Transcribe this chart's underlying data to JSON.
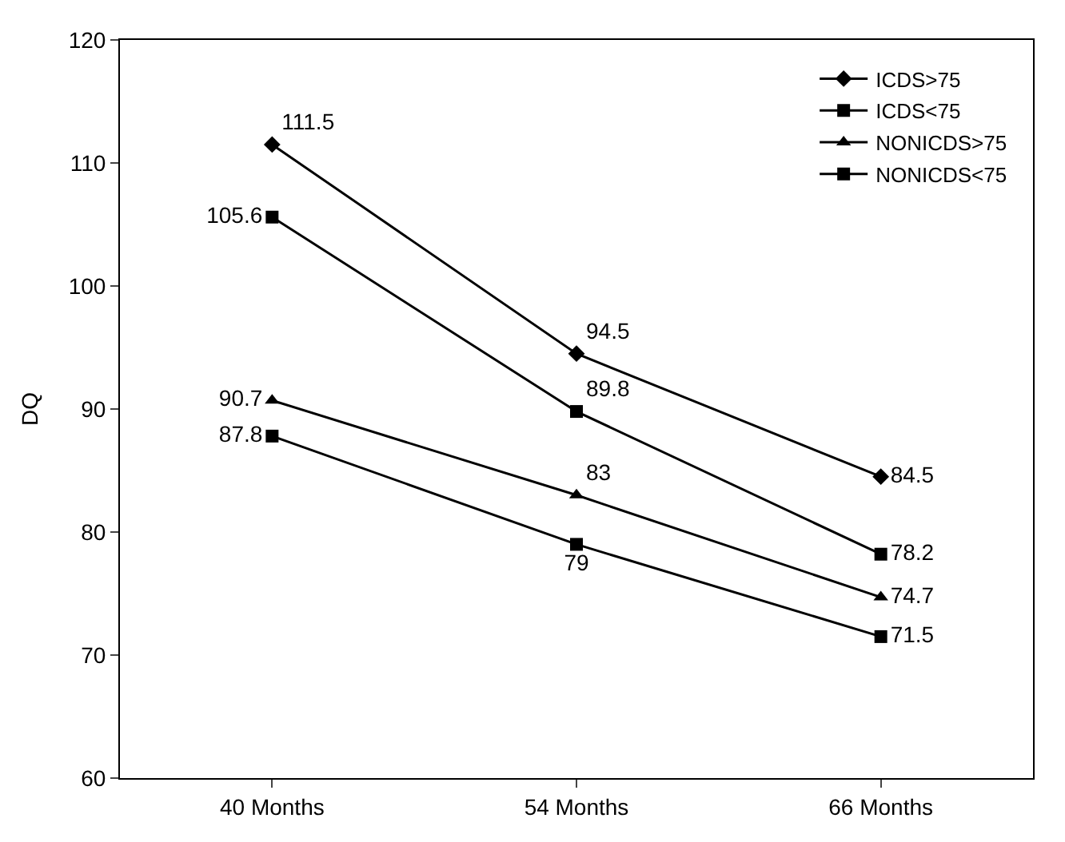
{
  "chart_data": {
    "type": "line",
    "ylabel": "DQ",
    "categories": [
      "40 Months",
      "54 Months",
      "66 Months"
    ],
    "series": [
      {
        "name": "ICDS>75",
        "color": "#000000",
        "marker": "diamond",
        "values": [
          111.5,
          94.5,
          84.5
        ]
      },
      {
        "name": "ICDS<75",
        "color": "#000000",
        "marker": "square",
        "values": [
          105.6,
          89.8,
          78.2
        ]
      },
      {
        "name": "NONICDS>75",
        "color": "#000000",
        "marker": "triangle",
        "values": [
          90.7,
          83,
          74.7
        ]
      },
      {
        "name": "NONICDS<75",
        "color": "#000000",
        "marker": "square",
        "values": [
          87.8,
          79,
          71.5
        ]
      }
    ],
    "ylim": [
      60,
      120
    ],
    "yticks": [
      60,
      70,
      80,
      90,
      100,
      110,
      120
    ],
    "data_labels": true,
    "legend": "top right",
    "grid": false,
    "line_style": "solid"
  }
}
